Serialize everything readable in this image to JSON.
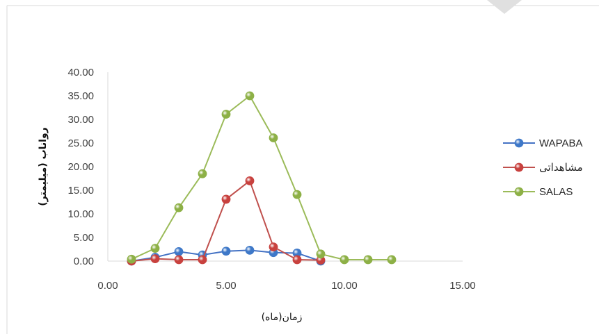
{
  "chart_data": {
    "type": "line",
    "title": "",
    "xlabel": "زمان(ماه)",
    "ylabel": "رواناب (میلیمتر)",
    "xlim": [
      0,
      15
    ],
    "ylim": [
      0,
      40
    ],
    "x_ticks": [
      "0.00",
      "5.00",
      "10.00",
      "15.00"
    ],
    "y_ticks": [
      "0.00",
      "5.00",
      "10.00",
      "15.00",
      "20.00",
      "25.00",
      "30.00",
      "35.00",
      "40.00"
    ],
    "grid": false,
    "legend_position": "right",
    "series": [
      {
        "name": "WAPABA",
        "color": "#4472C4",
        "marker_color": "#3E78C8",
        "x": [
          1,
          2,
          3,
          4,
          5,
          6,
          7,
          8,
          9
        ],
        "y": [
          0.0,
          0.8,
          2.0,
          1.3,
          2.1,
          2.3,
          1.8,
          1.7,
          0.0
        ]
      },
      {
        "name": "مشاهداتی",
        "color": "#C0504D",
        "marker_color": "#C8413E",
        "x": [
          1,
          2,
          3,
          4,
          5,
          6,
          7,
          8,
          9
        ],
        "y": [
          0.0,
          0.5,
          0.3,
          0.3,
          13.1,
          17.0,
          3.0,
          0.3,
          0.2
        ]
      },
      {
        "name": "SALAS",
        "color": "#9BBB59",
        "marker_color": "#8DB046",
        "x": [
          1,
          2,
          3,
          4,
          5,
          6,
          7,
          8,
          9,
          10,
          11,
          12
        ],
        "y": [
          0.4,
          2.7,
          11.3,
          18.5,
          31.1,
          35.0,
          26.1,
          14.1,
          1.5,
          0.3,
          0.3,
          0.3
        ]
      }
    ]
  }
}
